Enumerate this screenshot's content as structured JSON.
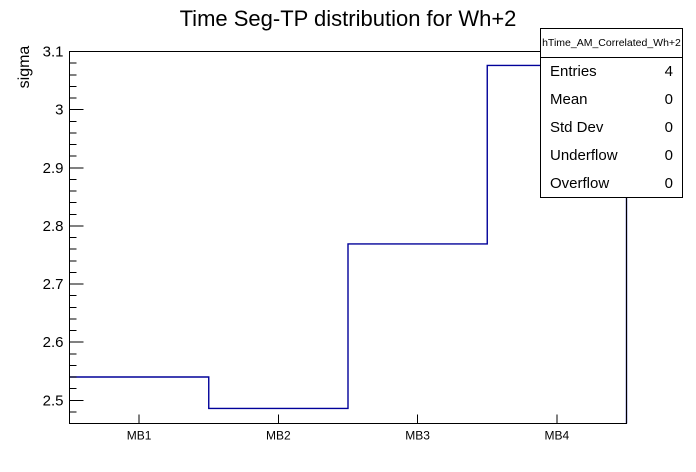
{
  "title": "Time Seg-TP distribution for Wh+2",
  "chart_data": {
    "type": "step",
    "title": "Time Seg-TP distribution for Wh+2",
    "xlabel": "",
    "ylabel": "sigma",
    "categories": [
      "MB1",
      "MB2",
      "MB3",
      "MB4"
    ],
    "values": [
      2.54,
      2.486,
      2.769,
      3.076
    ],
    "ylim": [
      2.46,
      3.1
    ],
    "yticks": [
      2.5,
      2.6,
      2.7,
      2.8,
      2.9,
      3.0,
      3.1
    ],
    "ytick_labels": [
      "2.5",
      "2.6",
      "2.7",
      "2.8",
      "2.9",
      "3",
      "3.1"
    ],
    "minor_tick_step": 0.02,
    "line_color": "#000099",
    "frame_color": "#000000",
    "grid": false,
    "legend_position": "stats box top-right"
  },
  "stats_box": {
    "title": "hTime_AM_Correlated_Wh+2",
    "rows": [
      {
        "label": "Entries",
        "value": "4"
      },
      {
        "label": "Mean",
        "value": "0"
      },
      {
        "label": "Std Dev",
        "value": "0"
      },
      {
        "label": "Underflow",
        "value": "0"
      },
      {
        "label": "Overflow",
        "value": "0"
      }
    ]
  }
}
